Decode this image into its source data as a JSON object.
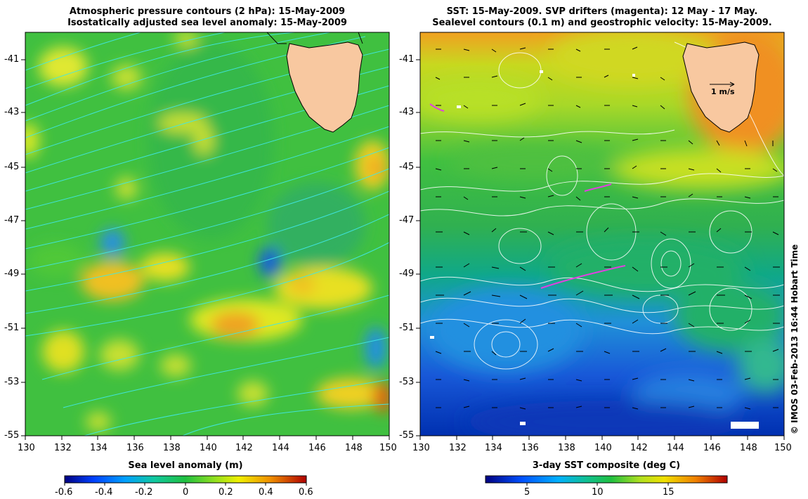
{
  "left_panel": {
    "title_line1": "Atmospheric pressure contours (2 hPa): 15-May-2009",
    "title_line2": "Isostatically adjusted sea level anomaly: 15-May-2009",
    "colorbar_title": "Sea level anomaly (m)",
    "colorbar_ticks": [
      "-0.6",
      "-0.4",
      "-0.2",
      "0",
      "0.2",
      "0.4",
      "0.6"
    ]
  },
  "right_panel": {
    "title_line1": "SST: 15-May-2009. SVP drifters (magenta): 12 May - 17 May.",
    "title_line2": "Sealevel contours (0.1 m) and geostrophic velocity: 15-May-2009.",
    "colorbar_title": "3-day SST composite (deg C)",
    "colorbar_ticks": [
      "5",
      "10",
      "15"
    ],
    "velocity_key": "1 m/s"
  },
  "axes": {
    "lon_ticks": [
      "130",
      "132",
      "134",
      "136",
      "138",
      "140",
      "142",
      "144",
      "146",
      "148",
      "150"
    ],
    "lat_ticks": [
      "-41",
      "-43",
      "-45",
      "-47",
      "-49",
      "-51",
      "-53",
      "-55"
    ]
  },
  "credit": "© IMOS 03-Feb-2013 16:44 Hobart Time",
  "colors": {
    "land": "#f8c8a0",
    "pressure_contour": "#40e8e8",
    "sealevel_contour": "#ffffff",
    "drifter": "#e040e0"
  }
}
